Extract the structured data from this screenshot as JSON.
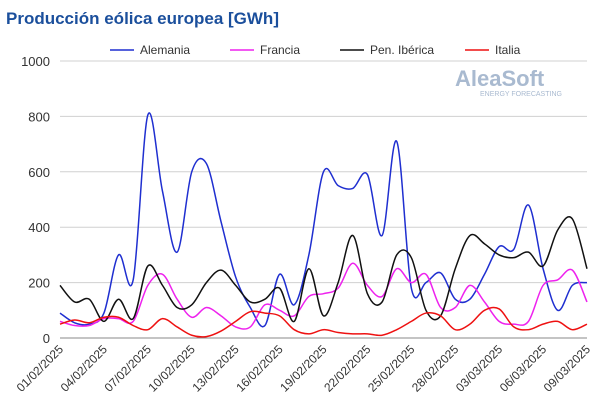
{
  "chart_data": {
    "type": "line",
    "title": "Producción eólica europea [GWh]",
    "logo": {
      "name": "AleaSoft",
      "tagline": "ENERGY FORECASTING"
    },
    "categories": [
      "01/02/2025",
      null,
      null,
      "04/02/2025",
      null,
      null,
      "07/02/2025",
      null,
      null,
      "10/02/2025",
      null,
      null,
      "13/02/2025",
      null,
      null,
      "16/02/2025",
      null,
      null,
      "19/02/2025",
      null,
      null,
      "22/02/2025",
      null,
      null,
      "25/02/2025",
      null,
      null,
      "28/02/2025",
      null,
      null,
      "03/03/2025",
      null,
      null,
      "06/03/2025",
      null,
      null,
      "09/03/2025"
    ],
    "series": [
      {
        "name": "Alemania",
        "color": "#1f2fd0",
        "values": [
          90,
          55,
          50,
          90,
          300,
          210,
          805,
          530,
          310,
          600,
          630,
          420,
          220,
          110,
          45,
          230,
          120,
          300,
          600,
          550,
          540,
          590,
          370,
          710,
          180,
          200,
          235,
          140,
          140,
          230,
          330,
          320,
          480,
          250,
          100,
          190,
          200
        ]
      },
      {
        "name": "Francia",
        "color": "#ee22ee",
        "values": [
          60,
          45,
          45,
          70,
          70,
          60,
          190,
          230,
          140,
          75,
          110,
          80,
          40,
          40,
          120,
          100,
          80,
          150,
          160,
          180,
          270,
          190,
          150,
          250,
          200,
          230,
          110,
          110,
          190,
          130,
          60,
          50,
          60,
          190,
          210,
          245,
          130
        ]
      },
      {
        "name": "Pen. Ibérica",
        "color": "#111111",
        "values": [
          190,
          130,
          140,
          60,
          140,
          70,
          260,
          190,
          110,
          120,
          200,
          245,
          190,
          130,
          140,
          180,
          60,
          250,
          80,
          200,
          370,
          160,
          130,
          300,
          290,
          100,
          80,
          250,
          370,
          340,
          300,
          290,
          310,
          260,
          390,
          430,
          250
        ]
      },
      {
        "name": "Italia",
        "color": "#ee1111",
        "values": [
          50,
          65,
          55,
          75,
          75,
          45,
          30,
          70,
          40,
          10,
          5,
          25,
          60,
          95,
          90,
          80,
          30,
          15,
          30,
          20,
          15,
          15,
          10,
          30,
          60,
          90,
          80,
          30,
          50,
          100,
          105,
          40,
          30,
          50,
          60,
          30,
          50
        ]
      }
    ],
    "ylim": [
      0,
      1000
    ],
    "yticks": [
      0,
      200,
      400,
      600,
      800,
      1000
    ],
    "grid": true,
    "legend": "top"
  }
}
